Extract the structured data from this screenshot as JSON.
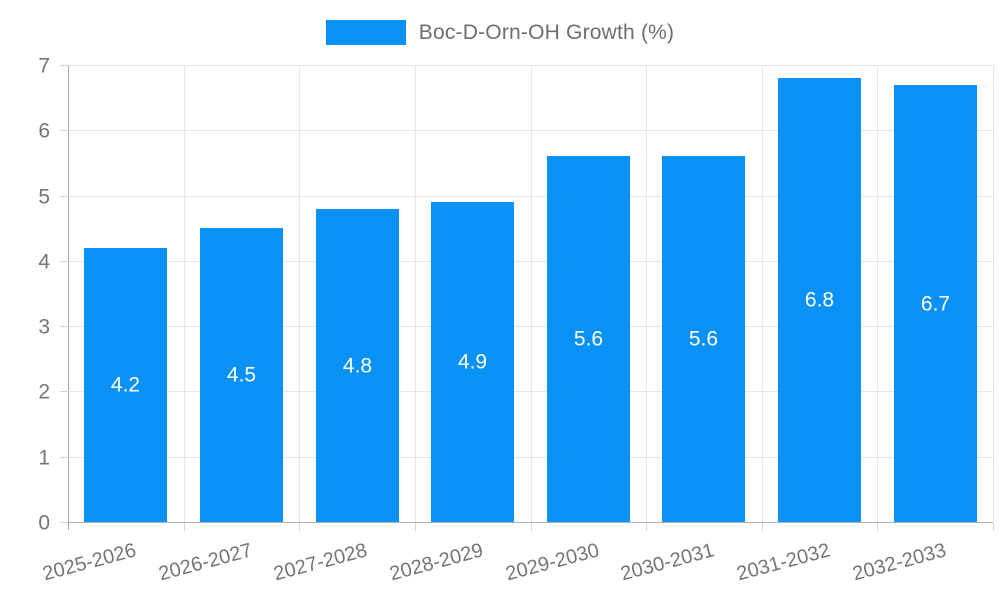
{
  "chart_data": {
    "type": "bar",
    "legend": "Boc-D-Orn-OH Growth (%)",
    "categories": [
      "2025-2026",
      "2026-2027",
      "2027-2028",
      "2028-2029",
      "2029-2030",
      "2030-2031",
      "2031-2032",
      "2032-2033"
    ],
    "values": [
      4.2,
      4.5,
      4.8,
      4.9,
      5.6,
      5.6,
      6.8,
      6.7
    ],
    "value_labels": [
      "4.2",
      "4.5",
      "4.8",
      "4.9",
      "5.6",
      "5.6",
      "6.8",
      "6.7"
    ],
    "xlabel": "",
    "ylabel": "",
    "ylim": [
      0,
      7
    ],
    "yticks": [
      0,
      1,
      2,
      3,
      4,
      5,
      6,
      7
    ],
    "grid": true,
    "legend_position": "top-center",
    "x_label_rotation_deg": -15,
    "colors": {
      "bar": "#0991f5",
      "bar_value_text": "#ffffff",
      "gridline": "#e6e6e6",
      "axis_line": "#a8a8a8",
      "tick_text": "#757575",
      "legend_text": "#6e6e6e"
    }
  }
}
